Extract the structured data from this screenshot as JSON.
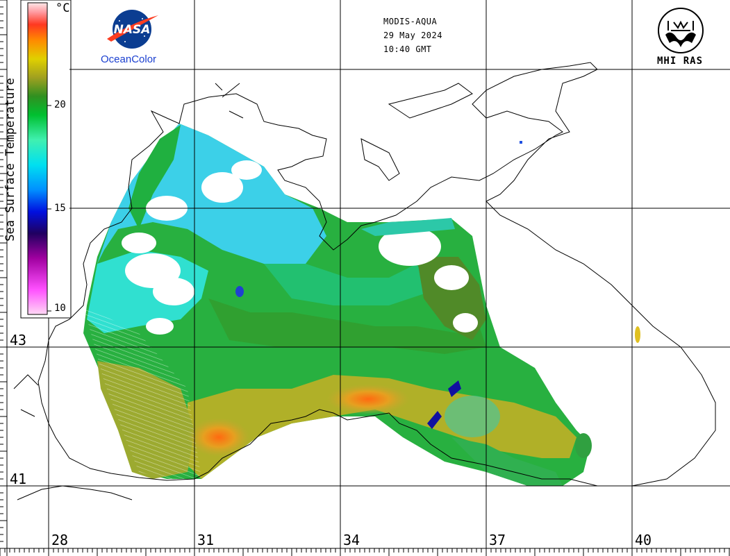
{
  "header": {
    "sensor": "MODIS-AQUA",
    "date": "29 May 2024",
    "time": "10:40 GMT"
  },
  "logos": {
    "nasa_text": "NASA",
    "oceancolor": "OceanColor",
    "mhi": "MHI RAS"
  },
  "legend": {
    "title": "Sea Surface Temperature",
    "unit": "°C",
    "ticks": [
      "20",
      "15",
      "10"
    ],
    "range": [
      10,
      23
    ],
    "colors": [
      "#ffd0f0",
      "#ff40ff",
      "#a000a0",
      "#200060",
      "#0000e0",
      "#0080ff",
      "#00d8ff",
      "#40f0c0",
      "#00c040",
      "#208020",
      "#80a020",
      "#d0d000",
      "#ff8000",
      "#ff3020",
      "#ff9090",
      "#ffe0e0"
    ]
  },
  "axes": {
    "latitude_labels": [
      "43",
      "41"
    ],
    "longitude_labels": [
      "28",
      "31",
      "34",
      "37",
      "40"
    ]
  }
}
